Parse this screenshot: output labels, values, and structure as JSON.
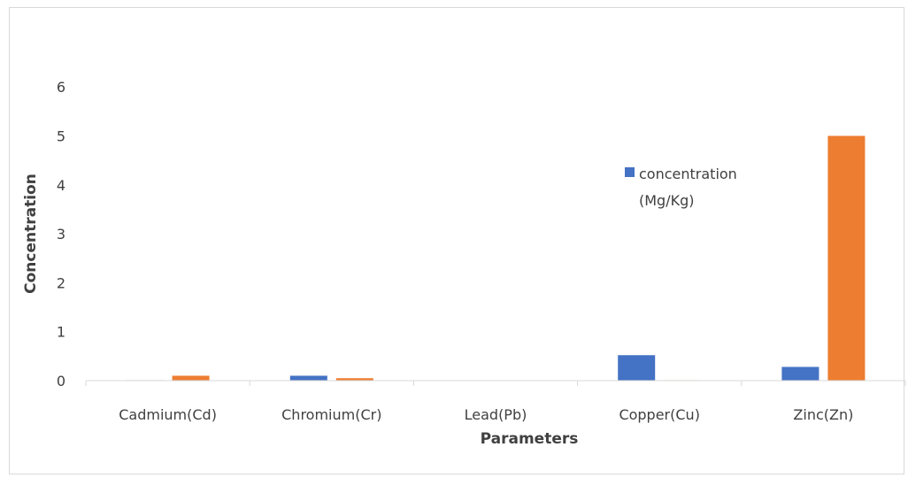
{
  "chart_data": {
    "type": "bar",
    "title": "",
    "xlabel": "Parameters",
    "ylabel": "Concentration",
    "categories": [
      "Cadmium(Cd)",
      "Chromium(Cr)",
      "Lead(Pb)",
      "Copper(Cu)",
      "Zinc(Zn)"
    ],
    "series": [
      {
        "name": "concentration (Mg/Kg)",
        "color": "#4472C4",
        "values": [
          0.01,
          0.1,
          0.0,
          0.52,
          0.28
        ]
      },
      {
        "color": "#ED7D31",
        "values": [
          0.1,
          0.05,
          0.0,
          0.01,
          5.0
        ]
      }
    ],
    "ylim": [
      0,
      6
    ],
    "yticks": [
      0,
      1,
      2,
      3,
      4,
      5,
      6
    ],
    "grid": false,
    "legend": {
      "lines": [
        "concentration",
        "(Mg/Kg)"
      ],
      "placement": "right"
    }
  }
}
